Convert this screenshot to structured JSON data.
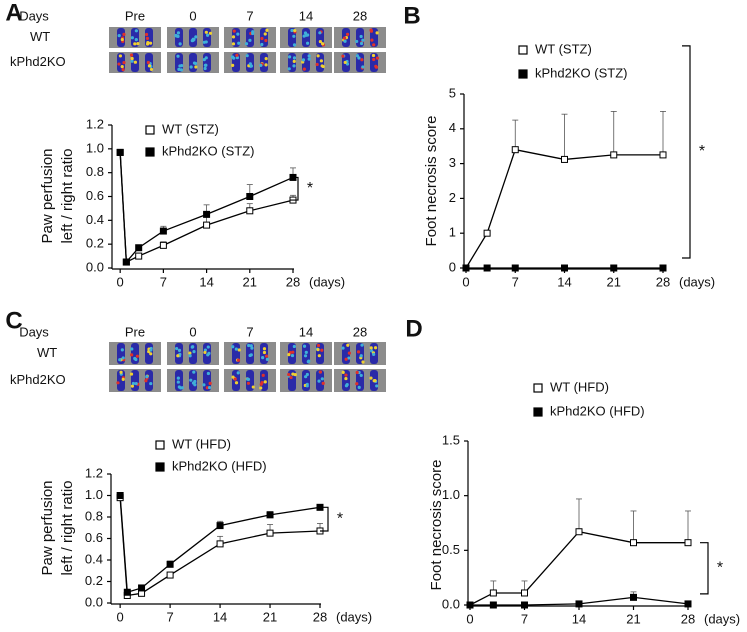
{
  "image_strips": [
    {
      "days_label": "Days",
      "days": [
        "Pre",
        "0",
        "7",
        "14",
        "28"
      ],
      "rows": [
        "WT",
        "kPhd2KO"
      ]
    },
    {
      "days_label": "Days",
      "days": [
        "Pre",
        "0",
        "7",
        "14",
        "28"
      ],
      "rows": [
        "WT",
        "kPhd2KO"
      ]
    }
  ],
  "chart_data": [
    {
      "type": "line",
      "panel": "A",
      "ylabel": [
        "Paw perfusion",
        "left / right ratio"
      ],
      "xlabel": "(days)",
      "annotation": "*",
      "x": [
        0,
        1,
        3,
        7,
        14,
        21,
        28
      ],
      "xlim": [
        -1,
        28
      ],
      "xticks": [
        0,
        7,
        14,
        21,
        28
      ],
      "ylim": [
        0,
        1.2
      ],
      "yticks": [
        {
          "value": 0,
          "label": "0.0"
        },
        0.2,
        0.4,
        0.6,
        0.8,
        {
          "value": 1,
          "label": "1.0"
        },
        1.2
      ],
      "series": [
        {
          "name": "WT (STZ)",
          "color": "#000000",
          "marker": "open",
          "values": [
            0.97,
            0.05,
            0.1,
            0.19,
            0.36,
            0.48,
            0.57
          ],
          "errors": [
            null,
            null,
            null,
            0.03,
            0.08,
            0.06,
            0.04
          ]
        },
        {
          "name": "kPhd2KO (STZ)",
          "color": "#000000",
          "marker": "filled",
          "values": [
            0.97,
            0.05,
            0.17,
            0.31,
            0.45,
            0.6,
            0.76
          ],
          "errors": [
            null,
            null,
            null,
            0.04,
            0.08,
            0.1,
            0.08
          ]
        }
      ]
    },
    {
      "type": "line",
      "panel": "B",
      "ylabel": [
        "Foot necrosis score"
      ],
      "xlabel": "(days)",
      "annotation": "*",
      "x": [
        0,
        3,
        7,
        14,
        21,
        28
      ],
      "xlim": [
        0,
        28
      ],
      "xticks": [
        0,
        7,
        14,
        21,
        28
      ],
      "ylim": [
        0,
        5
      ],
      "yticks": [
        0,
        1,
        2,
        3,
        4,
        5
      ],
      "series": [
        {
          "name": "WT (STZ)",
          "color": "#000000",
          "marker": "open",
          "values": [
            0,
            1.0,
            3.4,
            3.12,
            3.25,
            3.25
          ],
          "errors": [
            null,
            null,
            0.85,
            1.3,
            1.25,
            1.25
          ]
        },
        {
          "name": "kPhd2KO (STZ)",
          "color": "#000000",
          "marker": "filled",
          "values": [
            0,
            0,
            0,
            0,
            0,
            0
          ],
          "errors": [
            null,
            null,
            null,
            null,
            null,
            null
          ]
        }
      ]
    },
    {
      "type": "line",
      "panel": "C",
      "ylabel": [
        "Paw perfusion",
        "left / right ratio"
      ],
      "xlabel": "(days)",
      "annotation": "*",
      "x": [
        0,
        1,
        3,
        7,
        14,
        21,
        28
      ],
      "xlim": [
        -1,
        28
      ],
      "xticks": [
        0,
        7,
        14,
        21,
        28
      ],
      "ylim": [
        0,
        1.2
      ],
      "yticks": [
        {
          "value": 0,
          "label": "0.0"
        },
        0.2,
        0.4,
        0.6,
        0.8,
        {
          "value": 1,
          "label": "1.0"
        },
        1.2
      ],
      "series": [
        {
          "name": "WT (HFD)",
          "color": "#000000",
          "marker": "open",
          "values": [
            0.98,
            0.07,
            0.09,
            0.26,
            0.55,
            0.65,
            0.67
          ],
          "errors": [
            null,
            null,
            null,
            0.02,
            0.07,
            0.08,
            0.07
          ]
        },
        {
          "name": "kPhd2KO (HFD)",
          "color": "#000000",
          "marker": "filled",
          "values": [
            1.0,
            0.1,
            0.14,
            0.36,
            0.72,
            0.82,
            0.89
          ],
          "errors": [
            null,
            null,
            0.02,
            0.03,
            0.04,
            0.03,
            0.02
          ]
        }
      ]
    },
    {
      "type": "line",
      "panel": "D",
      "ylabel": [
        "Foot necrosis score"
      ],
      "xlabel": "(days)",
      "annotation": "*",
      "x": [
        0,
        3,
        7,
        14,
        21,
        28
      ],
      "xlim": [
        0,
        28
      ],
      "xticks": [
        0,
        7,
        14,
        21,
        28
      ],
      "ylim": [
        0,
        1.5
      ],
      "yticks": [
        {
          "value": 0,
          "label": "0.0"
        },
        0.5,
        {
          "value": 1,
          "label": "1.0"
        },
        1.5
      ],
      "series": [
        {
          "name": "WT (HFD)",
          "color": "#000000",
          "marker": "open",
          "values": [
            0,
            0.11,
            0.11,
            0.67,
            0.57,
            0.57
          ],
          "errors": [
            null,
            0.11,
            0.11,
            0.3,
            0.29,
            0.29
          ]
        },
        {
          "name": "kPhd2KO (HFD)",
          "color": "#000000",
          "marker": "filled",
          "values": [
            0,
            0,
            0,
            0.01,
            0.07,
            0.01
          ],
          "errors": [
            null,
            null,
            null,
            null,
            0.05,
            null
          ]
        }
      ]
    }
  ]
}
